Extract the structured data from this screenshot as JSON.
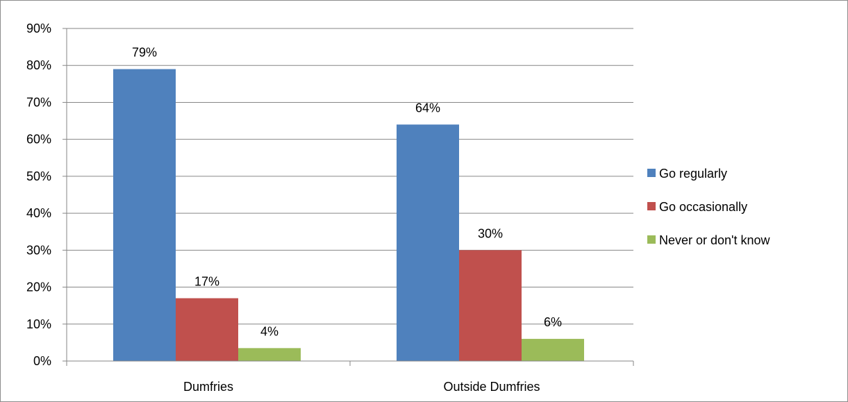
{
  "chart_data": {
    "type": "bar",
    "categories": [
      "Dumfries",
      "Outside Dumfries"
    ],
    "series": [
      {
        "name": "Go regularly",
        "values": [
          79,
          64
        ],
        "labels": [
          "79%",
          "64%"
        ],
        "color": "#4f81bd"
      },
      {
        "name": "Go occasionally",
        "values": [
          17,
          30
        ],
        "labels": [
          "17%",
          "30%"
        ],
        "color": "#c0504d"
      },
      {
        "name": "Never or don't know",
        "values": [
          3.5,
          6
        ],
        "labels": [
          "4%",
          "6%"
        ],
        "color": "#9bbb59"
      }
    ],
    "ylim": [
      0,
      90
    ],
    "yticks": [
      0,
      10,
      20,
      30,
      40,
      50,
      60,
      70,
      80,
      90
    ],
    "ytick_labels": [
      "0%",
      "10%",
      "20%",
      "30%",
      "40%",
      "50%",
      "60%",
      "70%",
      "80%",
      "90%"
    ],
    "grid": true,
    "legend_position": "right",
    "gridline_color": "#868686"
  }
}
